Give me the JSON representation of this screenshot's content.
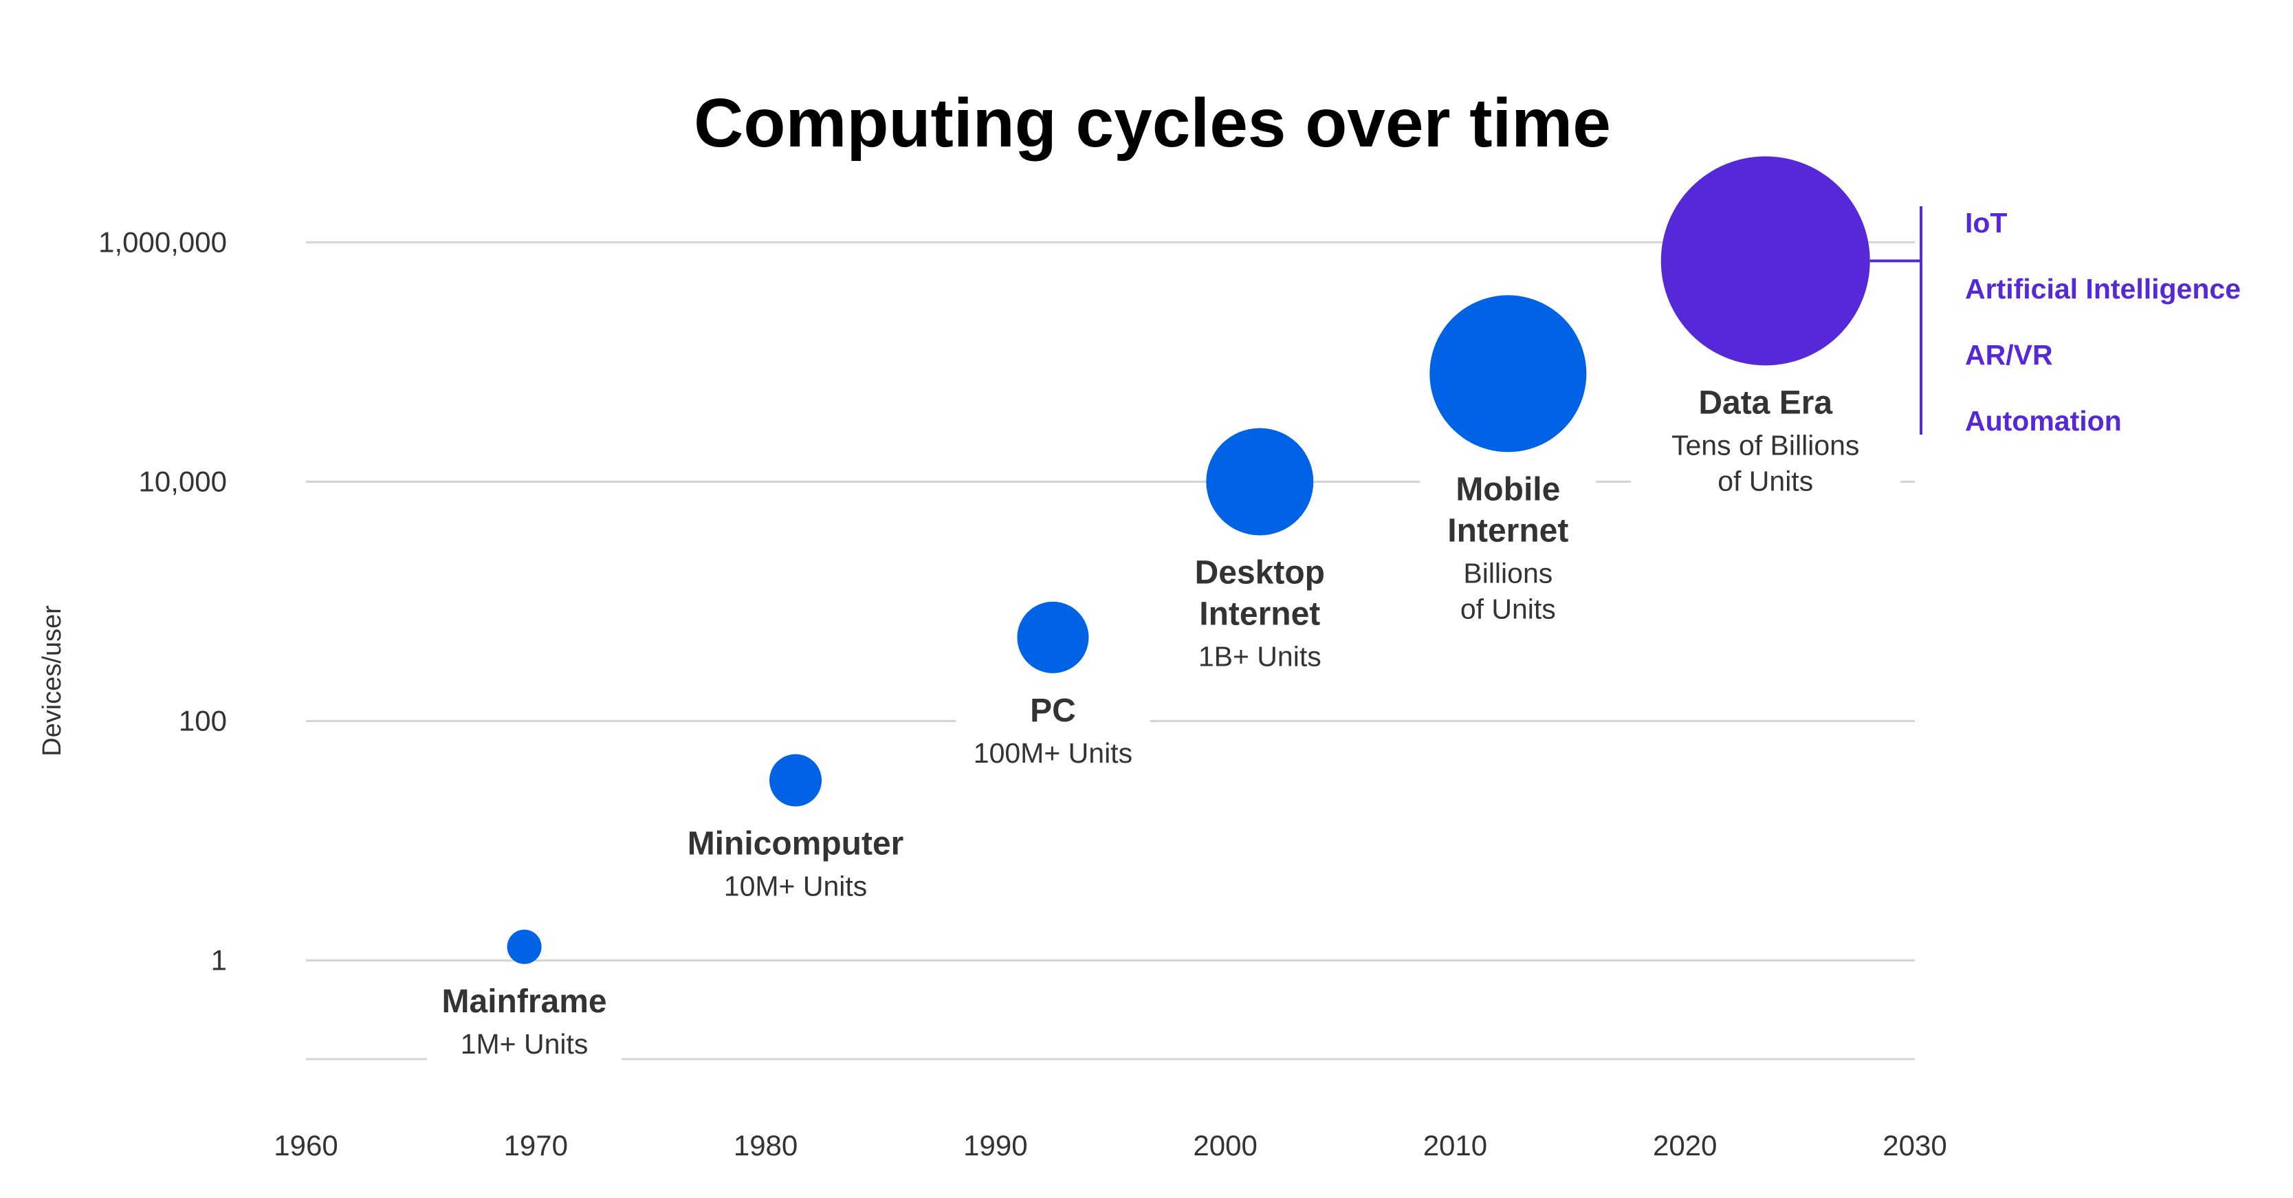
{
  "chart_data": {
    "type": "scatter",
    "title": "Computing cycles over time",
    "xlabel": "",
    "ylabel": "Devices/user",
    "x_ticks": [
      "1960",
      "1970",
      "1980",
      "1990",
      "2000",
      "2010",
      "2020",
      "2030"
    ],
    "xlim": [
      1960,
      2030
    ],
    "y_scale": "log",
    "y_ticks": [
      {
        "value": 1,
        "label": "1"
      },
      {
        "value": 100,
        "label": "100"
      },
      {
        "value": 10000,
        "label": "10,000"
      },
      {
        "value": 1000000,
        "label": "1,000,000"
      }
    ],
    "ylim": [
      0.15,
      2000000
    ],
    "grid": true,
    "series": [
      {
        "points": [
          {
            "name": "Mainframe",
            "units": [
              "1M+ Units"
            ],
            "x": 1969.5,
            "y": 1.3,
            "size": 1,
            "color": "#0063e5"
          },
          {
            "name": "Minicomputer",
            "units": [
              "10M+ Units"
            ],
            "x": 1981.3,
            "y": 32,
            "size": 2,
            "color": "#0063e5"
          },
          {
            "name": "PC",
            "units": [
              "100M+ Units"
            ],
            "x": 1992.5,
            "y": 500,
            "size": 3,
            "color": "#0063e5"
          },
          {
            "name": "Desktop Internet",
            "units": [
              "1B+ Units"
            ],
            "x": 2001.5,
            "y": 10000,
            "size": 4,
            "color": "#0063e5"
          },
          {
            "name": "Mobile Internet",
            "units": [
              "Billions",
              "of Units"
            ],
            "x": 2012.3,
            "y": 80000,
            "size": 5,
            "color": "#0063e5"
          },
          {
            "name": "Data Era",
            "units": [
              "Tens of Billions",
              "of Units"
            ],
            "x": 2023.5,
            "y": 700000,
            "size": 6,
            "color": "#5528d8"
          }
        ]
      }
    ],
    "annotations": {
      "color": "#5528d8",
      "items": [
        "IoT",
        "Artificial Intelligence",
        "AR/VR",
        "Automation"
      ]
    }
  }
}
